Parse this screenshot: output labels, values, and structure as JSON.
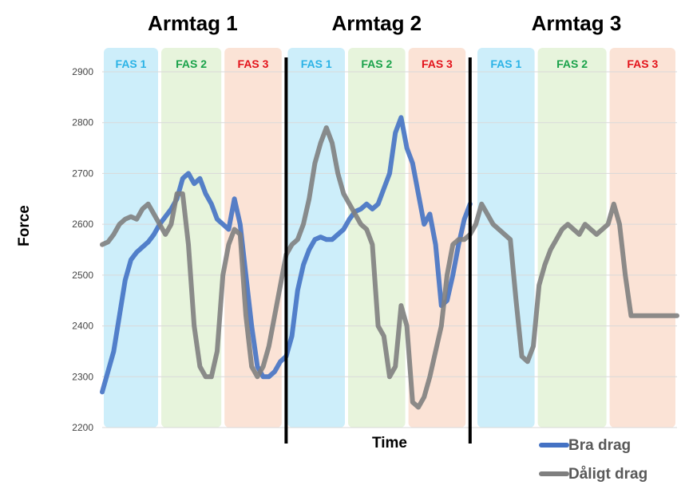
{
  "chart_data": {
    "type": "line",
    "xlabel": "Time",
    "ylabel": "Force",
    "ylim": [
      2200,
      2900
    ],
    "yticks": [
      2200,
      2300,
      2400,
      2500,
      2600,
      2700,
      2800,
      2900
    ],
    "x_range": [
      0,
      100
    ],
    "grid": true,
    "legend_position": "bottom-right",
    "strokes": [
      {
        "title": "Armtag 1",
        "x_start": 0,
        "x_end": 32,
        "phases": [
          {
            "label": "FAS 1",
            "x_start": 0,
            "x_end": 10,
            "color": "#cdeefa",
            "label_color": "#2bb3e6"
          },
          {
            "label": "FAS 2",
            "x_start": 10,
            "x_end": 21,
            "color": "#e7f4dc",
            "label_color": "#1aa24a"
          },
          {
            "label": "FAS 3",
            "x_start": 21,
            "x_end": 31.5,
            "color": "#fbe3d6",
            "label_color": "#e3131b"
          }
        ]
      },
      {
        "title": "Armtag 2",
        "x_start": 32,
        "x_end": 64,
        "phases": [
          {
            "label": "FAS 1",
            "x_start": 32,
            "x_end": 42.5,
            "color": "#cdeefa",
            "label_color": "#2bb3e6"
          },
          {
            "label": "FAS 2",
            "x_start": 42.5,
            "x_end": 53,
            "color": "#e7f4dc",
            "label_color": "#1aa24a"
          },
          {
            "label": "FAS 3",
            "x_start": 53,
            "x_end": 63.5,
            "color": "#fbe3d6",
            "label_color": "#e3131b"
          }
        ]
      },
      {
        "title": "Armtag 3",
        "x_start": 64,
        "x_end": 100,
        "phases": [
          {
            "label": "FAS 1",
            "x_start": 65,
            "x_end": 75.5,
            "color": "#cdeefa",
            "label_color": "#2bb3e6"
          },
          {
            "label": "FAS 2",
            "x_start": 75.5,
            "x_end": 88,
            "color": "#e7f4dc",
            "label_color": "#1aa24a"
          },
          {
            "label": "FAS 3",
            "x_start": 88,
            "x_end": 100,
            "color": "#fbe3d6",
            "label_color": "#e3131b"
          }
        ]
      }
    ],
    "dividers_x": [
      32,
      64
    ],
    "series": [
      {
        "name": "Bra drag",
        "color": "#4472c4",
        "x": [
          0,
          1,
          2,
          3,
          4,
          5,
          6,
          7,
          8,
          9,
          10,
          11,
          12,
          13,
          14,
          15,
          16,
          17,
          18,
          19,
          20,
          21,
          22,
          23,
          24,
          25,
          26,
          27,
          28,
          29,
          30,
          31,
          32,
          33,
          34,
          35,
          36,
          37,
          38,
          39,
          40,
          41,
          42,
          43,
          44,
          45,
          46,
          47,
          48,
          49,
          50,
          51,
          52,
          53,
          54,
          55,
          56,
          57,
          58,
          59,
          60,
          61,
          62,
          63,
          64
        ],
        "y": [
          2270,
          2310,
          2350,
          2420,
          2490,
          2530,
          2545,
          2555,
          2565,
          2580,
          2600,
          2615,
          2630,
          2650,
          2690,
          2700,
          2680,
          2690,
          2660,
          2640,
          2610,
          2600,
          2590,
          2650,
          2600,
          2500,
          2400,
          2320,
          2300,
          2300,
          2310,
          2330,
          2340,
          2380,
          2470,
          2520,
          2550,
          2570,
          2575,
          2570,
          2570,
          2580,
          2590,
          2610,
          2625,
          2630,
          2640,
          2630,
          2640,
          2670,
          2700,
          2780,
          2810,
          2750,
          2720,
          2660,
          2600,
          2620,
          2560,
          2440,
          2450,
          2500,
          2560,
          2610,
          2640
        ]
      },
      {
        "name": "Dåligt drag",
        "color": "#7f7f7f",
        "x": [
          0,
          1,
          2,
          3,
          4,
          5,
          6,
          7,
          8,
          9,
          10,
          11,
          12,
          13,
          14,
          15,
          16,
          17,
          18,
          19,
          20,
          21,
          22,
          23,
          24,
          25,
          26,
          27,
          28,
          29,
          30,
          31,
          32,
          33,
          34,
          35,
          36,
          37,
          38,
          39,
          40,
          41,
          42,
          43,
          44,
          45,
          46,
          47,
          48,
          49,
          50,
          51,
          52,
          53,
          54,
          55,
          56,
          57,
          58,
          59,
          60,
          61,
          62,
          63,
          64,
          65,
          66,
          67,
          68,
          69,
          70,
          71,
          72,
          73,
          74,
          75,
          76,
          77,
          78,
          79,
          80,
          81,
          82,
          83,
          84,
          85,
          86,
          87,
          88,
          89,
          90,
          91,
          92,
          93,
          94,
          95,
          96,
          97,
          98,
          99,
          100
        ],
        "y": [
          2560,
          2565,
          2580,
          2600,
          2610,
          2615,
          2610,
          2630,
          2640,
          2620,
          2600,
          2580,
          2600,
          2660,
          2660,
          2560,
          2400,
          2320,
          2300,
          2300,
          2350,
          2500,
          2560,
          2590,
          2580,
          2420,
          2320,
          2300,
          2320,
          2360,
          2420,
          2480,
          2540,
          2560,
          2570,
          2600,
          2650,
          2720,
          2760,
          2790,
          2760,
          2700,
          2660,
          2640,
          2620,
          2600,
          2590,
          2560,
          2400,
          2380,
          2300,
          2320,
          2440,
          2400,
          2250,
          2240,
          2260,
          2300,
          2350,
          2400,
          2500,
          2560,
          2570,
          2570,
          2580,
          2600,
          2640,
          2620,
          2600,
          2590,
          2580,
          2570,
          2450,
          2340,
          2330,
          2360,
          2480,
          2520,
          2550,
          2570,
          2590,
          2600,
          2590,
          2580,
          2600,
          2590,
          2580,
          2590,
          2600,
          2640,
          2600,
          2500,
          2420,
          2420,
          2420,
          2420,
          2420,
          2420,
          2420,
          2420,
          2420
        ]
      }
    ]
  }
}
